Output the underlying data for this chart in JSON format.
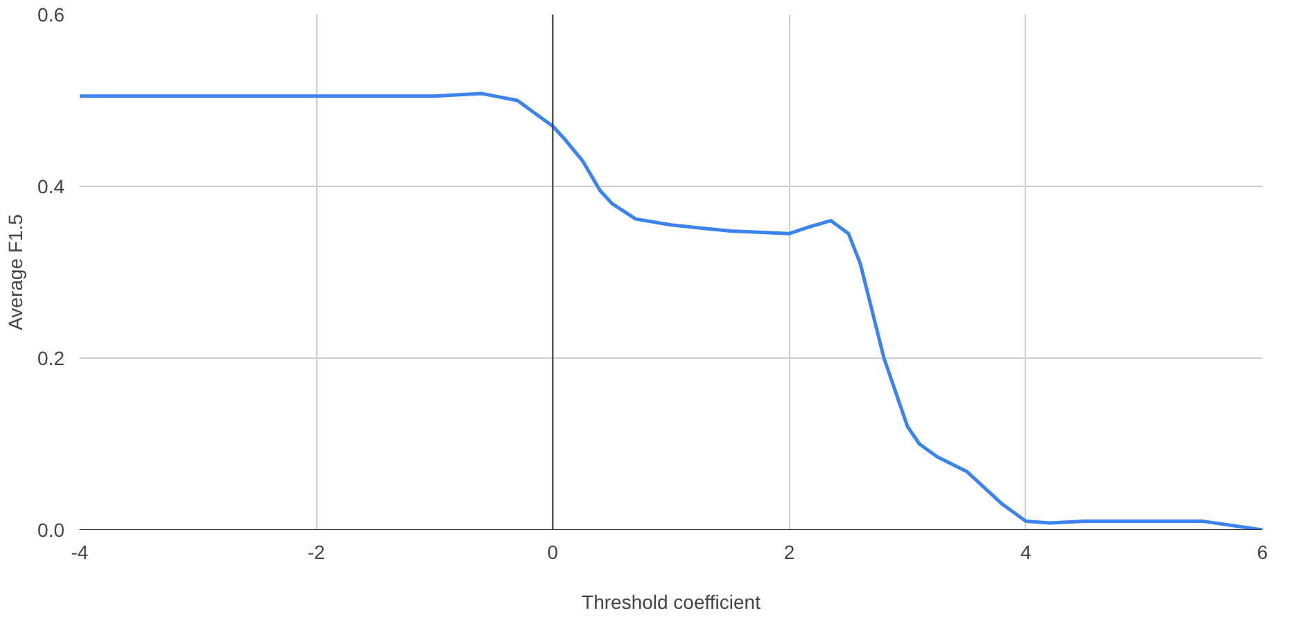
{
  "chart_data": {
    "type": "line",
    "xlabel": "Threshold coefficient",
    "ylabel": "Average F1.5",
    "x": [
      -4,
      -3,
      -2,
      -1,
      -0.6,
      -0.3,
      0,
      0.1,
      0.25,
      0.4,
      0.5,
      0.7,
      1,
      1.5,
      2,
      2.15,
      2.35,
      2.5,
      2.6,
      2.8,
      3,
      3.1,
      3.25,
      3.5,
      3.8,
      4,
      4.2,
      4.5,
      5,
      5.5,
      6
    ],
    "series": [
      {
        "color": "#3b84f0",
        "values": [
          0.505,
          0.505,
          0.505,
          0.505,
          0.508,
          0.5,
          0.47,
          0.455,
          0.43,
          0.395,
          0.38,
          0.362,
          0.355,
          0.348,
          0.345,
          0.352,
          0.36,
          0.345,
          0.31,
          0.2,
          0.12,
          0.1,
          0.085,
          0.068,
          0.03,
          0.01,
          0.008,
          0.01,
          0.01,
          0.01,
          0
        ]
      }
    ],
    "xlim": [
      -4,
      6
    ],
    "xticks": [
      -4,
      -2,
      0,
      2,
      4,
      6
    ],
    "ylim": [
      0,
      0.6
    ],
    "yticks": [
      {
        "value": 0,
        "label": "0.0"
      },
      {
        "value": 0.2,
        "label": "0.2"
      },
      {
        "value": 0.4,
        "label": "0.4"
      },
      {
        "value": 0.6,
        "label": "0.6"
      }
    ],
    "ref_lines": [
      {
        "axis": "x",
        "value": 0,
        "color": "#333333"
      }
    ],
    "grid": true,
    "marker": "none",
    "line_style": "solid"
  }
}
